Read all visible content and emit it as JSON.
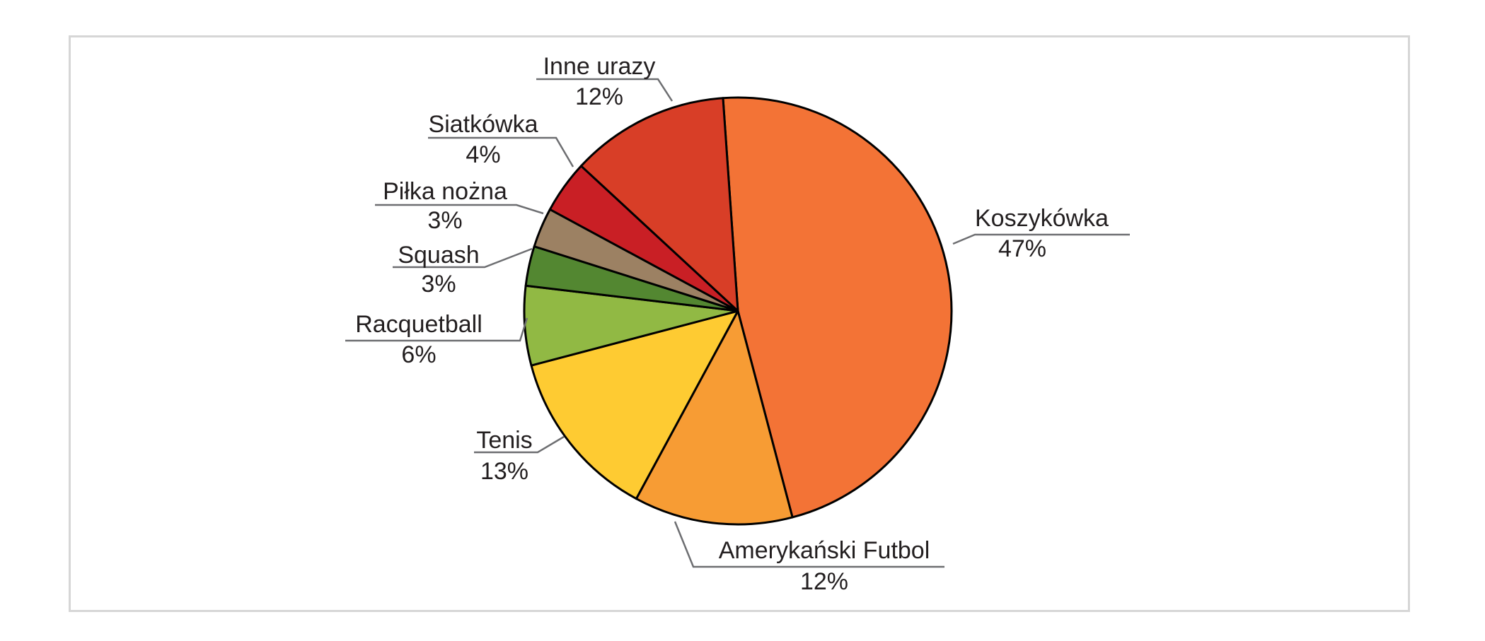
{
  "chart_data": {
    "type": "pie",
    "start_angle_deg": 94,
    "direction": "clockwise",
    "slice_border_color": "#000000",
    "leader_color": "#6d6e71",
    "slices": [
      {
        "label": "Koszykówka",
        "value": 47,
        "pct_label": "47%",
        "color": "#f37336"
      },
      {
        "label": "Amerykański Futbol",
        "value": 12,
        "pct_label": "12%",
        "color": "#f79c34"
      },
      {
        "label": "Tenis",
        "value": 13,
        "pct_label": "13%",
        "color": "#fecb32"
      },
      {
        "label": "Racquetball",
        "value": 6,
        "pct_label": "6%",
        "color": "#91b944"
      },
      {
        "label": "Squash",
        "value": 3,
        "pct_label": "3%",
        "color": "#538731"
      },
      {
        "label": "Piłka nożna",
        "value": 3,
        "pct_label": "3%",
        "color": "#9c8163"
      },
      {
        "label": "Siatkówka",
        "value": 4,
        "pct_label": "4%",
        "color": "#c91f25"
      },
      {
        "label": "Inne urazy",
        "value": 12,
        "pct_label": "12%",
        "color": "#d83e27"
      }
    ]
  }
}
